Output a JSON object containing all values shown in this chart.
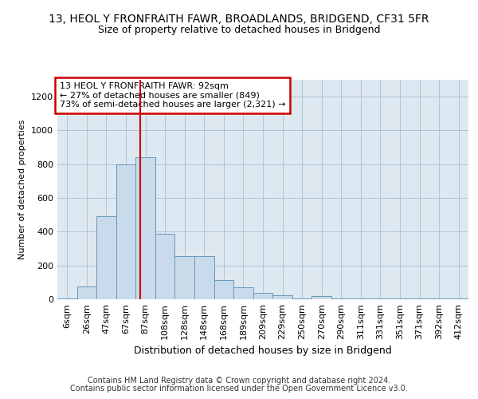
{
  "title": "13, HEOL Y FRONFRAITH FAWR, BROADLANDS, BRIDGEND, CF31 5FR",
  "subtitle": "Size of property relative to detached houses in Bridgend",
  "xlabel": "Distribution of detached houses by size in Bridgend",
  "ylabel": "Number of detached properties",
  "footer_line1": "Contains HM Land Registry data © Crown copyright and database right 2024.",
  "footer_line2": "Contains public sector information licensed under the Open Government Licence v3.0.",
  "bin_labels": [
    "6sqm",
    "26sqm",
    "47sqm",
    "67sqm",
    "87sqm",
    "108sqm",
    "128sqm",
    "148sqm",
    "168sqm",
    "189sqm",
    "209sqm",
    "229sqm",
    "250sqm",
    "270sqm",
    "290sqm",
    "311sqm",
    "331sqm",
    "351sqm",
    "371sqm",
    "392sqm",
    "412sqm"
  ],
  "bar_values": [
    5,
    75,
    490,
    800,
    840,
    390,
    255,
    255,
    115,
    70,
    40,
    25,
    5,
    20,
    5,
    5,
    5,
    5,
    5,
    5,
    5
  ],
  "bar_color": "#c9daea",
  "bar_edge_color": "#6699bb",
  "vline_color": "#cc0000",
  "annotation_text": "13 HEOL Y FRONFRAITH FAWR: 92sqm\n← 27% of detached houses are smaller (849)\n73% of semi-detached houses are larger (2,321) →",
  "annotation_box_color": "#ffffff",
  "annotation_border_color": "#cc0000",
  "ylim": [
    0,
    1300
  ],
  "yticks": [
    0,
    200,
    400,
    600,
    800,
    1000,
    1200
  ],
  "background_color": "#dde8f0",
  "grid_color": "#b0c4d4",
  "title_fontsize": 10,
  "subtitle_fontsize": 9,
  "annot_fontsize": 8,
  "tick_fontsize": 8,
  "xlabel_fontsize": 9,
  "ylabel_fontsize": 8,
  "footer_fontsize": 7
}
